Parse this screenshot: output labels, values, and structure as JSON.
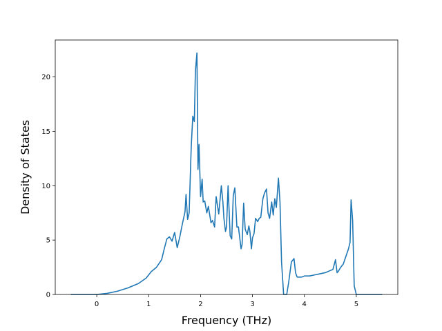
{
  "chart_data": {
    "type": "line",
    "title": "",
    "xlabel": "Frequency (THz)",
    "ylabel": "Density of States",
    "xlim": [
      -0.8,
      5.8
    ],
    "ylim": [
      0,
      23.4
    ],
    "x_ticks": [
      0,
      1,
      2,
      3,
      4,
      5
    ],
    "x_tick_labels": [
      "0",
      "1",
      "2",
      "3",
      "4",
      "5"
    ],
    "y_ticks": [
      0,
      5,
      10,
      15,
      20
    ],
    "y_tick_labels": [
      "0",
      "5",
      "10",
      "15",
      "20"
    ],
    "grid": false,
    "legend": "none",
    "color": "#1f77b4",
    "series": [
      {
        "x": [
          -0.5,
          0.0,
          0.2,
          0.4,
          0.6,
          0.8,
          0.95,
          1.05,
          1.15,
          1.25,
          1.3,
          1.35,
          1.4,
          1.45,
          1.5,
          1.55,
          1.6,
          1.65,
          1.7,
          1.72,
          1.75,
          1.78,
          1.82,
          1.85,
          1.88,
          1.9,
          1.93,
          1.95,
          1.97,
          2.0,
          2.03,
          2.05,
          2.08,
          2.12,
          2.15,
          2.2,
          2.23,
          2.27,
          2.3,
          2.35,
          2.4,
          2.43,
          2.45,
          2.48,
          2.5,
          2.53,
          2.57,
          2.6,
          2.63,
          2.66,
          2.7,
          2.73,
          2.78,
          2.8,
          2.83,
          2.86,
          2.9,
          2.93,
          2.95,
          2.98,
          3.0,
          3.03,
          3.06,
          3.1,
          3.13,
          3.16,
          3.2,
          3.23,
          3.27,
          3.3,
          3.33,
          3.37,
          3.4,
          3.43,
          3.46,
          3.5,
          3.53,
          3.56,
          3.6,
          3.63,
          3.66,
          3.7,
          3.75,
          3.8,
          3.83,
          3.86,
          3.9,
          3.95,
          4.0,
          4.1,
          4.2,
          4.3,
          4.4,
          4.5,
          4.55,
          4.6,
          4.63,
          4.65,
          4.7,
          4.75,
          4.8,
          4.85,
          4.88,
          4.9,
          4.93,
          4.96,
          5.0,
          5.05,
          5.5
        ],
        "y": [
          0,
          0,
          0.1,
          0.3,
          0.6,
          1.0,
          1.5,
          2.1,
          2.5,
          3.2,
          4.2,
          5.1,
          5.3,
          4.9,
          5.7,
          4.3,
          5.3,
          6.5,
          7.6,
          9.2,
          6.9,
          7.5,
          13.6,
          16.4,
          15.9,
          20.5,
          22.2,
          11.5,
          13.8,
          9.0,
          10.6,
          8.5,
          8.6,
          7.5,
          8.1,
          6.6,
          6.8,
          6.2,
          9.0,
          7.4,
          10.0,
          8.5,
          7.0,
          5.8,
          6.2,
          10.0,
          5.4,
          5.1,
          9.1,
          9.8,
          6.2,
          6.2,
          4.2,
          4.6,
          8.4,
          6.0,
          5.5,
          6.3,
          5.8,
          4.2,
          5.2,
          5.6,
          7.0,
          6.7,
          7.0,
          7.1,
          8.8,
          9.3,
          9.7,
          7.5,
          7.0,
          8.5,
          7.3,
          8.8,
          8.0,
          10.7,
          8.5,
          3.0,
          0,
          0,
          0,
          1.2,
          3.0,
          3.3,
          2.0,
          1.6,
          1.6,
          1.6,
          1.7,
          1.7,
          1.8,
          1.9,
          2.0,
          2.2,
          2.3,
          3.2,
          2.0,
          2.1,
          2.5,
          2.8,
          3.5,
          4.2,
          4.8,
          8.7,
          6.8,
          0.8,
          0,
          0,
          0
        ]
      }
    ]
  }
}
